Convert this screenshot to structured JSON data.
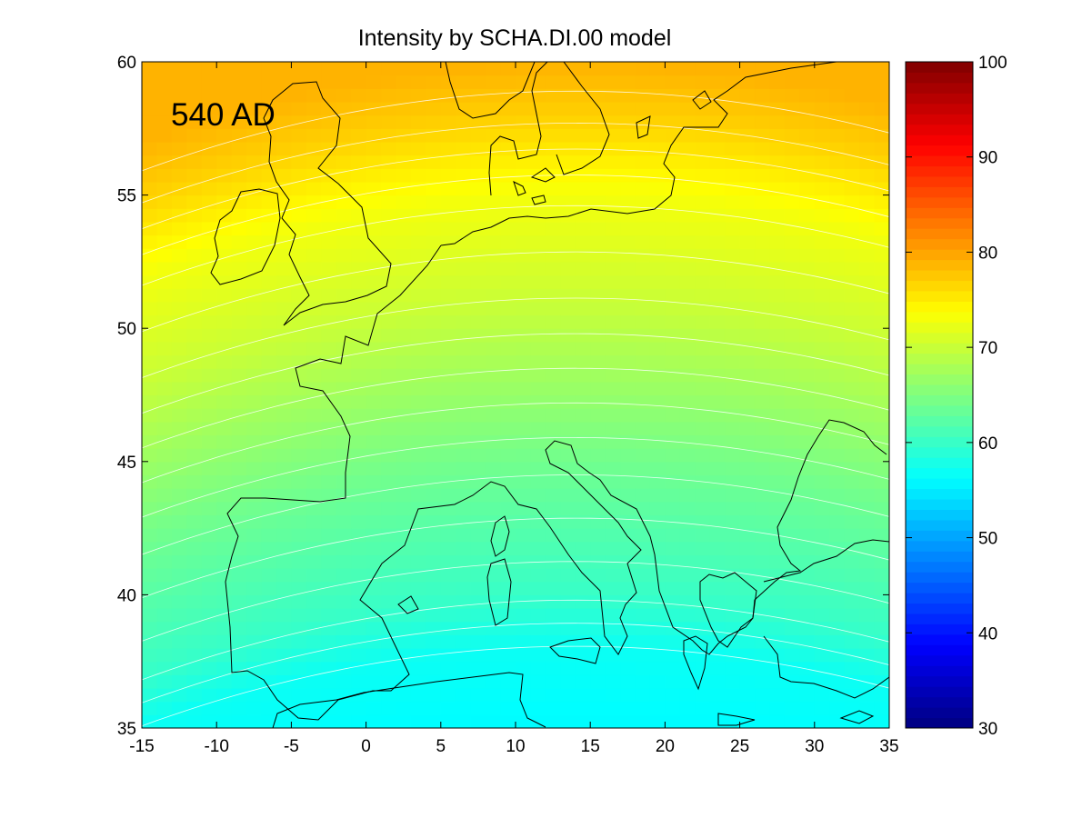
{
  "chart_data": {
    "type": "heatmap",
    "title": "Intensity by SCHA.DI.00 model",
    "annotation": "540 AD",
    "xlabel": "",
    "ylabel": "",
    "xlim": [
      -15,
      35
    ],
    "ylim": [
      35,
      60
    ],
    "x_ticks": [
      -15,
      -10,
      -5,
      0,
      5,
      10,
      15,
      20,
      25,
      30,
      35
    ],
    "y_ticks": [
      35,
      40,
      45,
      50,
      55,
      60
    ],
    "colorbar": {
      "range": [
        30,
        100
      ],
      "ticks": [
        30,
        40,
        50,
        60,
        70,
        80,
        90,
        100
      ],
      "colormap": "jet"
    },
    "field": {
      "description": "intensity contours",
      "center_longitude": 14,
      "samples": [
        {
          "lat": 35,
          "lon": 14,
          "value": 56
        },
        {
          "lat": 35,
          "lon": -15,
          "value": 52
        },
        {
          "lat": 35,
          "lon": 35,
          "value": 55
        },
        {
          "lat": 38,
          "lon": 14,
          "value": 57
        },
        {
          "lat": 40,
          "lon": 14,
          "value": 60
        },
        {
          "lat": 45,
          "lon": 14,
          "value": 64
        },
        {
          "lat": 48,
          "lon": 14,
          "value": 67
        },
        {
          "lat": 51,
          "lon": 14,
          "value": 70
        },
        {
          "lat": 55,
          "lon": 14,
          "value": 73
        },
        {
          "lat": 58,
          "lon": 14,
          "value": 77
        },
        {
          "lat": 60,
          "lon": 14,
          "value": 79
        },
        {
          "lat": 60,
          "lon": -15,
          "value": 77
        }
      ]
    },
    "grid": false,
    "contour_line_color": "#ffffff"
  }
}
